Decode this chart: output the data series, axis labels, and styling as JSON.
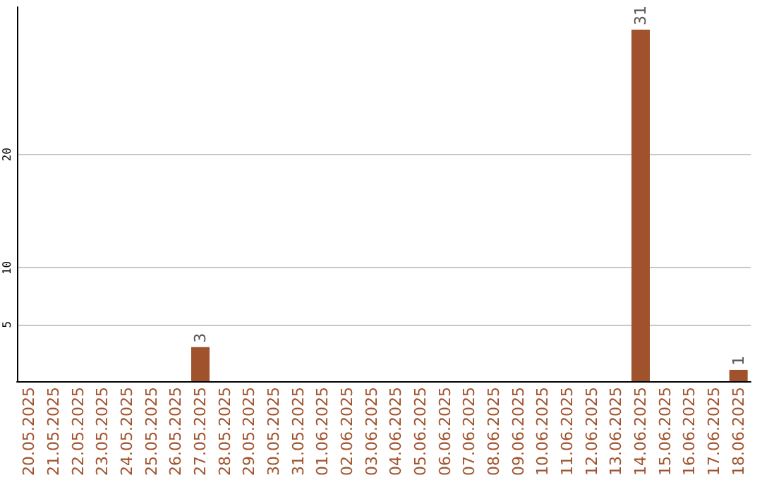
{
  "chart_data": {
    "type": "bar",
    "categories": [
      "20.05.2025",
      "21.05.2025",
      "22.05.2025",
      "23.05.2025",
      "24.05.2025",
      "25.05.2025",
      "26.05.2025",
      "27.05.2025",
      "28.05.2025",
      "29.05.2025",
      "30.05.2025",
      "31.05.2025",
      "01.06.2025",
      "02.06.2025",
      "03.06.2025",
      "04.06.2025",
      "05.06.2025",
      "06.06.2025",
      "07.06.2025",
      "08.06.2025",
      "09.06.2025",
      "10.06.2025",
      "11.06.2025",
      "12.06.2025",
      "13.06.2025",
      "14.06.2025",
      "15.06.2025",
      "16.06.2025",
      "17.06.2025",
      "18.06.2025"
    ],
    "values": [
      0,
      0,
      0,
      0,
      0,
      0,
      0,
      3,
      0,
      0,
      0,
      0,
      0,
      0,
      0,
      0,
      0,
      0,
      0,
      0,
      0,
      0,
      0,
      0,
      0,
      31,
      0,
      0,
      0,
      1
    ],
    "value_labels": [
      null,
      null,
      null,
      null,
      null,
      null,
      null,
      "3",
      null,
      null,
      null,
      null,
      null,
      null,
      null,
      null,
      null,
      null,
      null,
      null,
      null,
      null,
      null,
      null,
      null,
      "31",
      null,
      null,
      null,
      "1"
    ],
    "color": "#a0522d",
    "ylim": [
      0,
      33
    ],
    "yticks": [
      5,
      10,
      20
    ],
    "grid": "y"
  }
}
